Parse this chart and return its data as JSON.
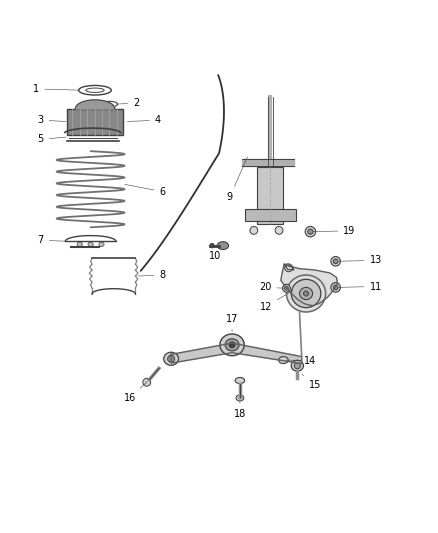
{
  "bg_color": "#ffffff",
  "line_color": "#404040",
  "part_color": "#606060",
  "label_color": "#000000",
  "fig_width": 4.38,
  "fig_height": 5.33
}
